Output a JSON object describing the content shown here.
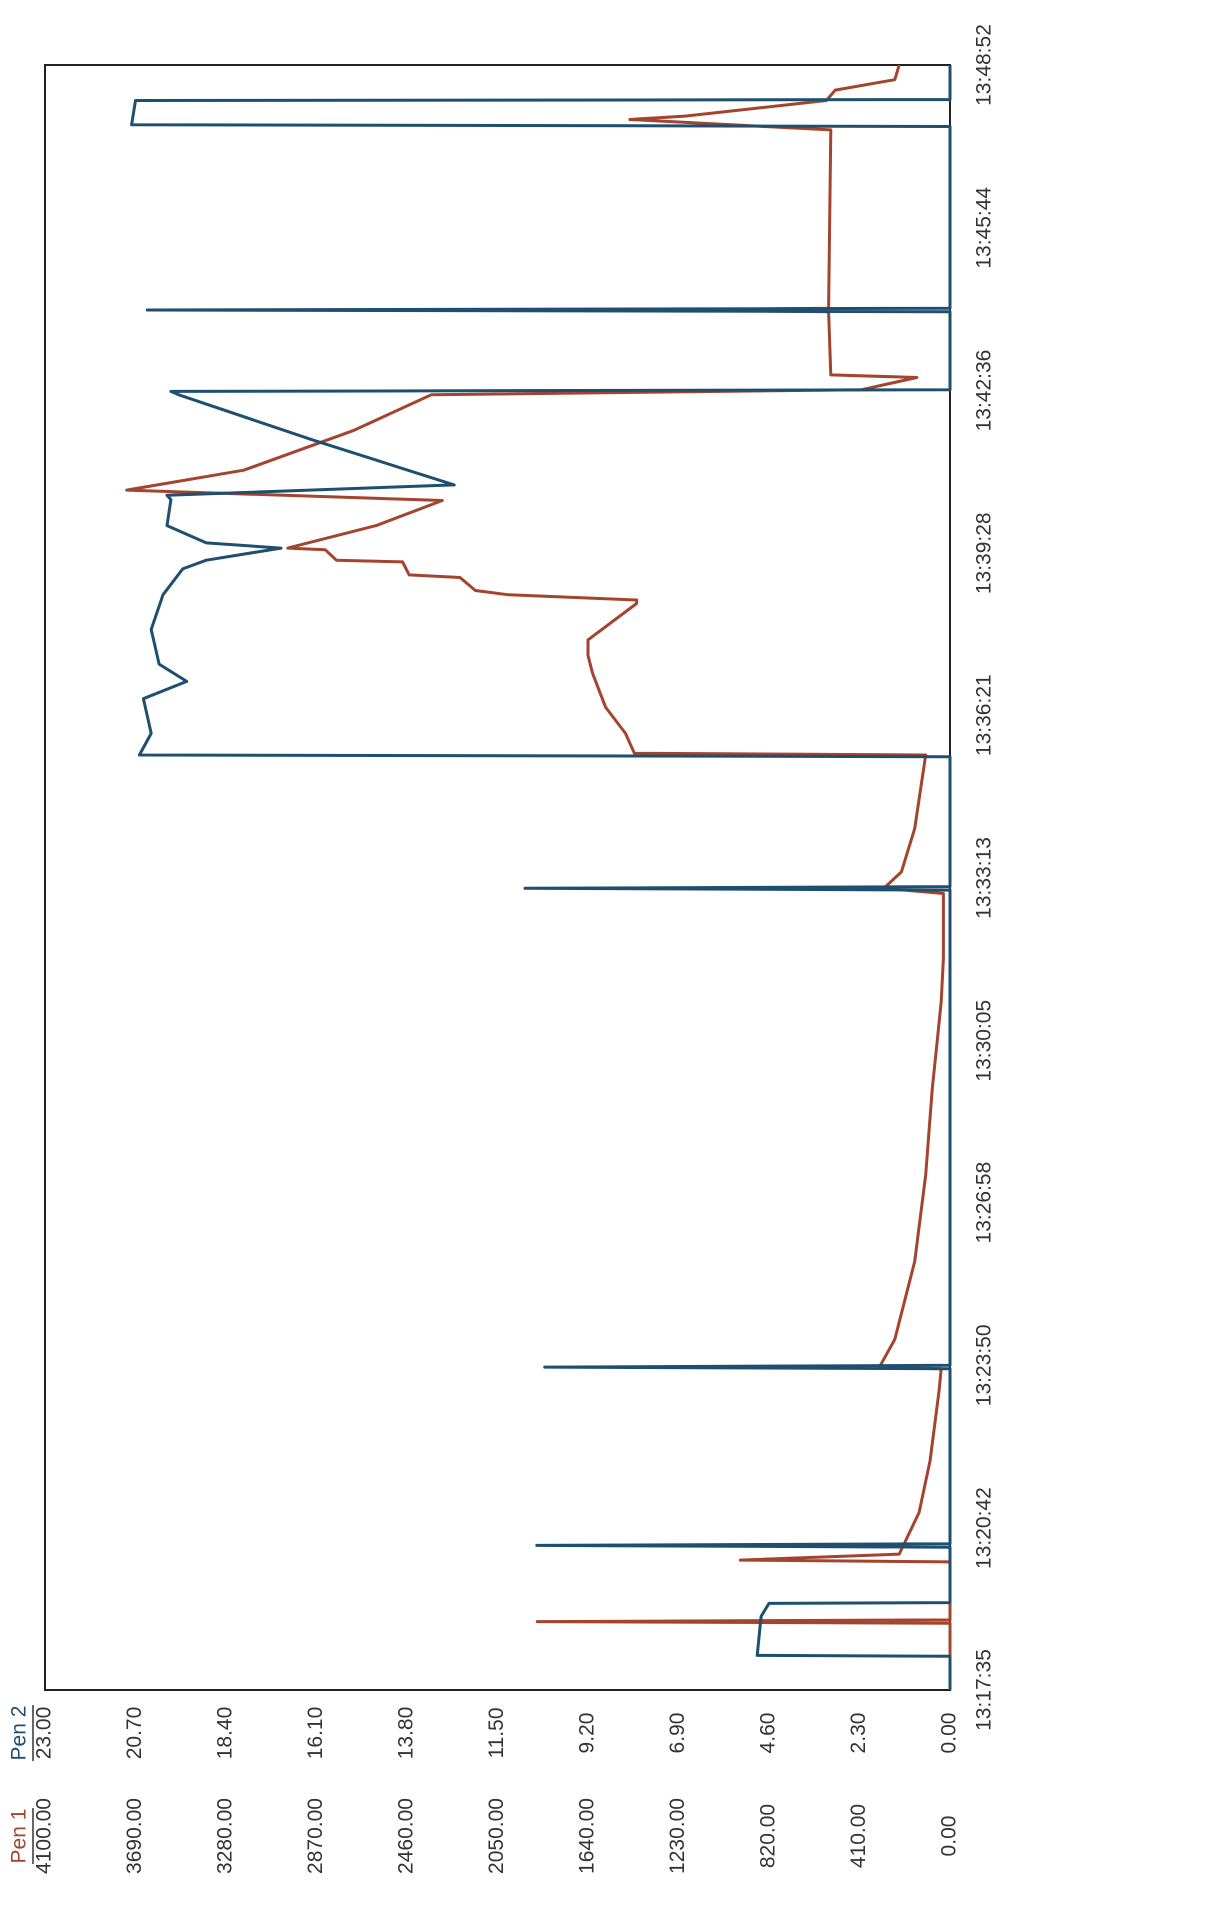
{
  "chart_data": {
    "type": "line",
    "x_format": "seconds-of-day",
    "xlim": [
      47855,
      49732
    ],
    "xticks": [
      {
        "value": 47855,
        "label": "13:17:35"
      },
      {
        "value": 48042,
        "label": "13:20:42"
      },
      {
        "value": 48230,
        "label": "13:23:50"
      },
      {
        "value": 48418,
        "label": "13:26:58"
      },
      {
        "value": 48605,
        "label": "13:30:05"
      },
      {
        "value": 48793,
        "label": "13:33:13"
      },
      {
        "value": 48981,
        "label": "13:36:21"
      },
      {
        "value": 49168,
        "label": "13:39:28"
      },
      {
        "value": 49356,
        "label": "13:42:36"
      },
      {
        "value": 49544,
        "label": "13:45:44"
      },
      {
        "value": 49732,
        "label": "13:48:52"
      }
    ],
    "ylim": [
      0,
      4100
    ],
    "yticks": [
      {
        "value": 0,
        "label": "0.00"
      },
      {
        "value": 410,
        "label": "410.00"
      },
      {
        "value": 820,
        "label": "820.00"
      },
      {
        "value": 1230,
        "label": "1230.00"
      },
      {
        "value": 1640,
        "label": "1640.00"
      },
      {
        "value": 2050,
        "label": "2050.00"
      },
      {
        "value": 2460,
        "label": "2460.00"
      },
      {
        "value": 2870,
        "label": "2870.00"
      },
      {
        "value": 3280,
        "label": "3280.00"
      },
      {
        "value": 3690,
        "label": "3690.00"
      },
      {
        "value": 4100,
        "label": "4100.00"
      }
    ],
    "y2lim": [
      0,
      23
    ],
    "y2ticks": [
      {
        "value": 0,
        "label": "0.00"
      },
      {
        "value": 2.3,
        "label": "2.30"
      },
      {
        "value": 4.6,
        "label": "4.60"
      },
      {
        "value": 6.9,
        "label": "6.90"
      },
      {
        "value": 9.2,
        "label": "9.20"
      },
      {
        "value": 11.5,
        "label": "11.50"
      },
      {
        "value": 13.8,
        "label": "13.80"
      },
      {
        "value": 16.1,
        "label": "16.10"
      },
      {
        "value": 18.4,
        "label": "18.40"
      },
      {
        "value": 20.7,
        "label": "20.70"
      },
      {
        "value": 23,
        "label": "23.00"
      }
    ],
    "grid": false,
    "series": [
      {
        "name": "Pen 1",
        "color": "#a3442f",
        "x": [
          47855,
          47932,
          47934,
          47936,
          48003,
          48005,
          48012,
          48060,
          48120,
          48200,
          48226,
          48228,
          48260,
          48350,
          48450,
          48550,
          48600,
          48650,
          48700,
          48775,
          48781,
          48800,
          48850,
          48935,
          48937,
          48960,
          48990,
          49010,
          49030,
          49050,
          49068,
          49110,
          49114,
          49120,
          49125,
          49140,
          49143,
          49158,
          49160,
          49172,
          49174,
          49200,
          49229,
          49241,
          49264,
          49310,
          49351,
          49357,
          49371,
          49374,
          49447,
          49449,
          49451,
          49657,
          49669,
          49673,
          49691,
          49703,
          49715,
          49732
        ],
        "values": [
          0,
          0,
          1870,
          0,
          0,
          950,
          230,
          140,
          90,
          50,
          40,
          320,
          250,
          160,
          110,
          80,
          60,
          40,
          30,
          30,
          300,
          220,
          160,
          110,
          1430,
          1470,
          1560,
          1590,
          1620,
          1640,
          1640,
          1420,
          1420,
          2000,
          2150,
          2220,
          2450,
          2480,
          2780,
          2830,
          3000,
          2600,
          2300,
          3730,
          3200,
          2700,
          2350,
          400,
          150,
          540,
          550,
          1300,
          550,
          540,
          1450,
          1200,
          560,
          520,
          250,
          230
        ]
      },
      {
        "name": "Pen 2",
        "color": "#1f4f6f",
        "axis": "y2",
        "x": [
          47855,
          47894,
          47895,
          47940,
          47955,
          47956,
          48020,
          48022,
          48024,
          48226,
          48228,
          48230,
          48779,
          48781,
          48783,
          48933,
          48935,
          48960,
          49000,
          49020,
          49040,
          49080,
          49120,
          49150,
          49160,
          49174,
          49180,
          49200,
          49230,
          49235,
          49247,
          49299,
          49351,
          49355,
          49357,
          49447,
          49449,
          49451,
          49661,
          49663,
          49691,
          49692,
          49732
        ],
        "values": [
          0,
          0,
          4.9,
          4.8,
          4.6,
          0,
          0,
          10.5,
          0,
          0,
          10.3,
          0,
          0,
          10.8,
          0,
          0,
          20.6,
          20.3,
          20.5,
          19.4,
          20.1,
          20.3,
          20.0,
          19.5,
          18.9,
          17.0,
          18.9,
          19.9,
          19.8,
          19.9,
          12.6,
          16.2,
          19.6,
          19.8,
          0,
          0,
          20.4,
          0,
          0,
          20.8,
          20.7,
          0,
          0
        ]
      }
    ]
  }
}
